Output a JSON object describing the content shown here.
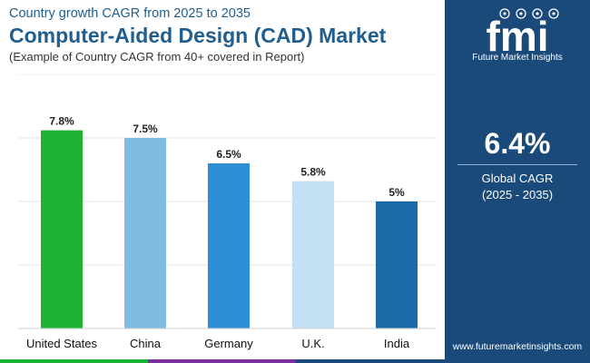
{
  "header": {
    "subtitle": "Country growth CAGR from 2025 to 2035",
    "title": "Computer-Aided Design (CAD) Market",
    "caption": "(Example of Country CAGR from 40+ covered in Report)"
  },
  "chart_data": {
    "type": "bar",
    "title": "Computer-Aided Design (CAD) Market",
    "xlabel": "",
    "ylabel": "",
    "ylim": [
      0,
      10
    ],
    "grid": true,
    "categories": [
      "United States",
      "China",
      "Germany",
      "U.K.",
      "India"
    ],
    "values": [
      7.8,
      7.5,
      6.5,
      5.8,
      5.0
    ],
    "value_labels": [
      "7.8%",
      "7.5%",
      "6.5%",
      "5.8%",
      "5%"
    ],
    "colors": [
      "#1db135",
      "#7fbce2",
      "#2e8fd6",
      "#c2e0f4",
      "#1a6aa5"
    ]
  },
  "side_panel": {
    "logo_text": "fmi",
    "logo_subtitle": "Future Market Insights",
    "kpi_value": "6.4%",
    "kpi_label": "Global CAGR",
    "kpi_period": "(2025 - 2035)",
    "website": "www.futuremarketinsights.com",
    "background": "#1a4a7a"
  },
  "footer": {
    "strip_colors": [
      "#1db135",
      "#7b2ea1",
      "#1a4a7a",
      "#1a4a7a"
    ]
  }
}
